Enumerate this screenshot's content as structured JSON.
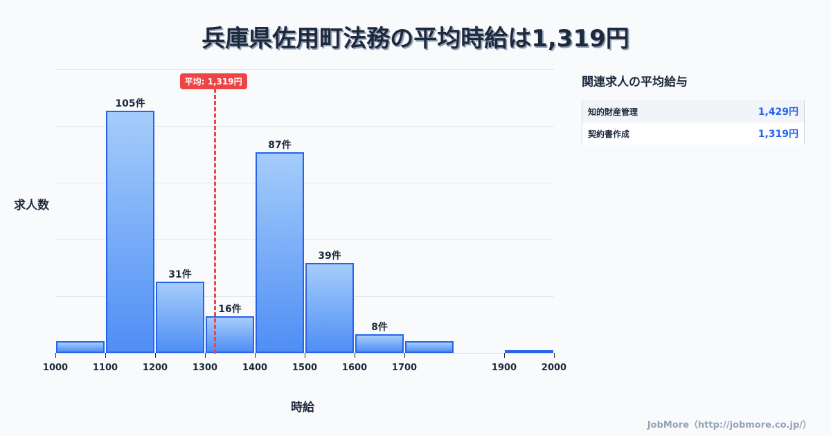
{
  "title": "兵庫県佐用町法務の平均時給は1,319円",
  "chart_data": {
    "type": "bar",
    "title": "兵庫県佐用町法務の平均時給は1,319円",
    "xlabel": "時給",
    "ylabel": "求人数",
    "bins": [
      {
        "start": 1000,
        "end": 1100,
        "value": 5,
        "label": ""
      },
      {
        "start": 1100,
        "end": 1200,
        "value": 105,
        "label": "105件"
      },
      {
        "start": 1200,
        "end": 1300,
        "value": 31,
        "label": "31件"
      },
      {
        "start": 1300,
        "end": 1400,
        "value": 16,
        "label": "16件"
      },
      {
        "start": 1400,
        "end": 1500,
        "value": 87,
        "label": "87件"
      },
      {
        "start": 1500,
        "end": 1600,
        "value": 39,
        "label": "39件"
      },
      {
        "start": 1600,
        "end": 1700,
        "value": 8,
        "label": "8件"
      },
      {
        "start": 1700,
        "end": 1800,
        "value": 5,
        "label": ""
      },
      {
        "start": 1800,
        "end": 1900,
        "value": 0,
        "label": ""
      },
      {
        "start": 1900,
        "end": 2000,
        "value": 1,
        "label": ""
      }
    ],
    "categories": [
      "1000-1100",
      "1100-1200",
      "1200-1300",
      "1300-1400",
      "1400-1500",
      "1500-1600",
      "1600-1700",
      "1700-1800",
      "1800-1900",
      "1900-2000"
    ],
    "values": [
      5,
      105,
      31,
      16,
      87,
      39,
      8,
      5,
      0,
      1
    ],
    "x_ticks": [
      "1000",
      "1100",
      "1200",
      "1300",
      "1400",
      "1500",
      "1600",
      "1700",
      "1900",
      "2000"
    ],
    "xlim": [
      1000,
      2000
    ],
    "ylim": [
      0,
      123
    ],
    "grid": true,
    "average": {
      "value": 1319,
      "label": "平均: 1,319円",
      "color": "#ef4444"
    },
    "bar_color": "#2563eb"
  },
  "sidebar": {
    "title": "関連求人の平均給与",
    "rows": [
      {
        "name": "知的財産管理",
        "value": "1,429円"
      },
      {
        "name": "契約書作成",
        "value": "1,319円"
      }
    ]
  },
  "footer": "JobMore（http://jobmore.co.jp/）"
}
